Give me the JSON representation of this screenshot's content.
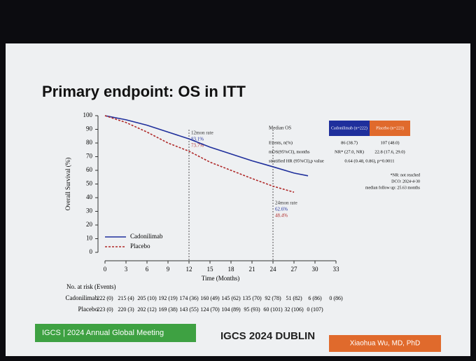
{
  "chart_data": {
    "type": "line",
    "title": "Primary endpoint: OS in ITT",
    "x_label": "Time (Months)",
    "y_label": "Overall Survival (%)",
    "x": [
      0,
      3,
      6,
      9,
      12,
      15,
      18,
      21,
      24,
      27,
      29
    ],
    "series": [
      {
        "name": "Cadonilimab",
        "color": "#1f2f9c",
        "dash": false,
        "values": [
          100,
          97,
          93,
          88,
          83,
          77,
          72,
          67,
          62.6,
          58,
          56
        ]
      },
      {
        "name": "Placebo",
        "color": "#b02a2a",
        "dash": true,
        "values": [
          100,
          95,
          88,
          80,
          74,
          66,
          60,
          54,
          48.4,
          44,
          null
        ]
      }
    ],
    "xlim": [
      0,
      33
    ],
    "xticks": [
      0,
      3,
      6,
      9,
      12,
      15,
      18,
      21,
      24,
      27,
      30,
      33
    ],
    "ylim": [
      0,
      100
    ],
    "yticks": [
      0,
      10,
      20,
      30,
      40,
      50,
      60,
      70,
      80,
      90,
      100
    ],
    "annotations": [
      {
        "x": 12,
        "lines": [
          "12mon rate",
          "83.1%",
          "73.7%"
        ]
      },
      {
        "x": 24,
        "lines": [
          "24mon rate",
          "62.6%",
          "48.4%"
        ]
      }
    ]
  },
  "table": {
    "header": [
      "Median OS",
      "Cadonilimab (n=222)",
      "Placebo (n=223)"
    ],
    "rows": [
      [
        "Events, n(%)",
        "86 (38.7)",
        "107 (48.0)"
      ],
      [
        "mOS(95%CI), months",
        "NR* (27.0, NR)",
        "22.8 (17.6, 29.0)"
      ],
      [
        "stratified HR (95%CI),p value",
        "0.64 (0.48, 0.86), p=0.0011"
      ]
    ],
    "notes": [
      "*NR: not reached",
      "DCO: 2024-4-30",
      "median follow up: 25.63 months"
    ]
  },
  "risk_table": {
    "title": "No. at risk (Events)",
    "rows": [
      {
        "name": "Cadonilimab",
        "values": [
          "222 (0)",
          "215 (4)",
          "205 (10)",
          "192 (19)",
          "174 (36)",
          "160 (49)",
          "145 (62)",
          "135 (70)",
          "92 (78)",
          "51 (82)",
          "6 (86)",
          "0 (86)"
        ]
      },
      {
        "name": "Placebo",
        "values": [
          "223 (0)",
          "220 (3)",
          "202 (12)",
          "169 (38)",
          "143 (55)",
          "124 (70)",
          "104 (89)",
          "95 (93)",
          "60 (101)",
          "32 (106)",
          "0 (107)"
        ]
      }
    ]
  },
  "footer": {
    "left": "IGCS | 2024 Annual Global Meeting",
    "center": "IGCS 2024 DUBLIN",
    "right": "Xiaohua Wu, MD, PhD"
  }
}
